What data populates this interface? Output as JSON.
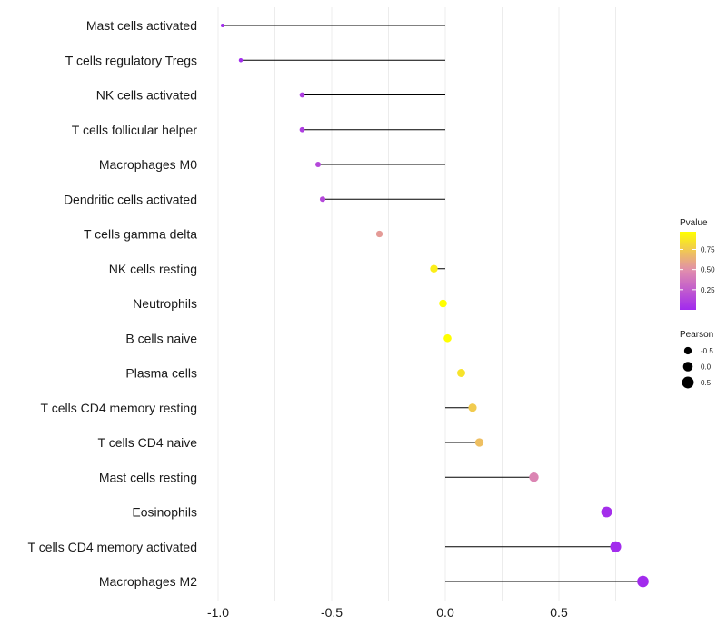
{
  "chart_data": {
    "type": "lollipop",
    "title": "",
    "xlabel": "",
    "ylabel": "",
    "xlim": [
      -1.0,
      0.87
    ],
    "x_ticks": [
      -1.0,
      -0.5,
      0.0,
      0.5
    ],
    "x_tick_labels": [
      "-1.0",
      "-0.5",
      "0.0",
      "0.5"
    ],
    "grid": true,
    "categories": [
      "Mast cells activated",
      "T cells regulatory  Tregs",
      "NK cells activated",
      "T cells follicular helper",
      "Macrophages M0",
      "Dendritic cells activated",
      "T cells gamma delta",
      "NK cells resting",
      "Neutrophils",
      "B cells naive",
      "Plasma cells",
      "T cells CD4 memory resting",
      "T cells CD4 naive",
      "Mast cells resting",
      "Eosinophils",
      "T cells CD4 memory activated",
      "Macrophages M2"
    ],
    "pearson": [
      -0.98,
      -0.9,
      -0.63,
      -0.63,
      -0.56,
      -0.54,
      -0.29,
      -0.05,
      -0.01,
      0.01,
      0.07,
      0.12,
      0.15,
      0.39,
      0.71,
      0.75,
      0.87
    ],
    "pvalue": [
      0.01,
      0.01,
      0.1,
      0.1,
      0.15,
      0.15,
      0.55,
      0.9,
      0.97,
      0.97,
      0.85,
      0.75,
      0.7,
      0.45,
      0.02,
      0.01,
      0.005
    ],
    "legend": {
      "placement": "right",
      "color_title": "Pvalue",
      "color_ticks": [
        0.25,
        0.5,
        0.75
      ],
      "color_tick_labels": [
        "0.25",
        "0.50",
        "0.75"
      ],
      "color_range": [
        0.0,
        0.97
      ],
      "size_title": "Pearson",
      "size_values": [
        -0.5,
        0.0,
        0.5
      ],
      "size_labels": [
        "-0.5",
        "0.0",
        "0.5"
      ]
    },
    "colors": {
      "low": "#a12aee",
      "mid": "#e08cae",
      "high": "#ffff00",
      "stem": "#000000",
      "grid": "#ececec"
    }
  }
}
